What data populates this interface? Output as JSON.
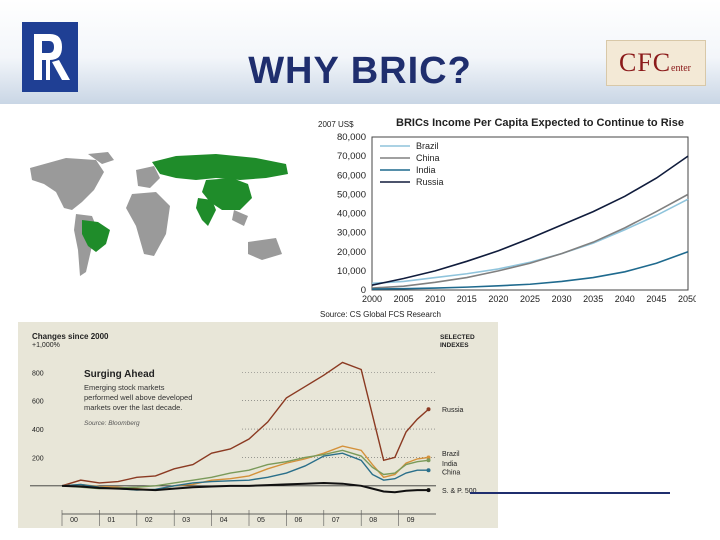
{
  "slide": {
    "title": "WHY BRIC?",
    "cfc_logo": "CFC",
    "cfc_logo_sub": "enter"
  },
  "colors": {
    "title": "#1f2e6e",
    "map_highlight": "#1f8c2a",
    "map_base": "#9a9a9a",
    "brazil": "#8fc4dc",
    "china": "#808080",
    "india": "#1f6a8e",
    "russia": "#101c3c",
    "surge_bg": "#e8e6d8",
    "surge_russia": "#8b3a22",
    "surge_brazil": "#d4913a",
    "surge_india": "#7a9a5a",
    "surge_china": "#2a6f8a",
    "surge_sp500": "#101010"
  },
  "chart_data": [
    {
      "type": "line",
      "title": "BRICs Income Per Capita Expected to Continue to Rise",
      "ylabel": "2007 US$",
      "source": "Source: CS Global FCS Research",
      "x": [
        2000,
        2005,
        2010,
        2015,
        2020,
        2025,
        2030,
        2035,
        2040,
        2045,
        2050
      ],
      "x_tick_labels": [
        "2000",
        "2005",
        "2010",
        "2015",
        "2020",
        "2025",
        "2030",
        "2035",
        "2040",
        "2045",
        "2050"
      ],
      "y_tick_labels": [
        "0",
        "10,000",
        "20,000",
        "30,000",
        "40,000",
        "50,000",
        "60,000",
        "70,000",
        "80,000"
      ],
      "ylim": [
        0,
        80000
      ],
      "legend_position": "top-left",
      "series": [
        {
          "name": "Brazil",
          "values": [
            3500,
            4500,
            6500,
            8500,
            11000,
            14500,
            19000,
            24500,
            31500,
            39000,
            47500
          ]
        },
        {
          "name": "China",
          "values": [
            1000,
            2000,
            4000,
            6500,
            10000,
            14000,
            19000,
            25000,
            32500,
            41000,
            50000
          ]
        },
        {
          "name": "India",
          "values": [
            500,
            700,
            1000,
            1500,
            2200,
            3000,
            4500,
            6500,
            9500,
            14000,
            20000
          ]
        },
        {
          "name": "Russia",
          "values": [
            2500,
            6000,
            10000,
            15000,
            20500,
            27000,
            34000,
            41000,
            49000,
            58500,
            70000
          ]
        }
      ]
    },
    {
      "type": "line",
      "title": "Changes since 2000",
      "subtitle": "Surging Ahead",
      "note": "Emerging stock markets performed well above developed markets over the last decade.",
      "source": "Source: Bloomberg",
      "legend_title": "SELECTED INDEXES",
      "y_tick_labels": [
        "+1,000%",
        "800",
        "600",
        "400",
        "200"
      ],
      "x_tick_labels": [
        "00",
        "01",
        "02",
        "03",
        "04",
        "05",
        "06",
        "07",
        "08",
        "09"
      ],
      "x": [
        2000.0,
        2000.5,
        2001.0,
        2001.5,
        2002.0,
        2002.5,
        2003.0,
        2003.5,
        2004.0,
        2004.5,
        2005.0,
        2005.5,
        2006.0,
        2006.5,
        2007.0,
        2007.5,
        2008.0,
        2008.3,
        2008.6,
        2008.9,
        2009.2,
        2009.5,
        2009.8
      ],
      "ylim": [
        -100,
        1000
      ],
      "series": [
        {
          "name": "Russia",
          "values": [
            0,
            40,
            20,
            30,
            60,
            70,
            120,
            150,
            230,
            260,
            330,
            450,
            620,
            700,
            780,
            870,
            820,
            500,
            180,
            200,
            380,
            470,
            540
          ]
        },
        {
          "name": "Brazil",
          "values": [
            0,
            10,
            -5,
            -10,
            -20,
            -30,
            0,
            10,
            40,
            50,
            70,
            120,
            160,
            190,
            230,
            280,
            250,
            150,
            60,
            80,
            160,
            190,
            200
          ]
        },
        {
          "name": "India",
          "values": [
            0,
            -10,
            -20,
            -15,
            -10,
            0,
            20,
            40,
            60,
            90,
            110,
            150,
            170,
            200,
            220,
            250,
            210,
            130,
            80,
            90,
            150,
            170,
            180
          ]
        },
        {
          "name": "China",
          "values": [
            0,
            10,
            -10,
            -20,
            -30,
            -25,
            0,
            20,
            30,
            35,
            40,
            60,
            90,
            140,
            210,
            230,
            180,
            80,
            40,
            50,
            90,
            110,
            110
          ]
        },
        {
          "name": "S. & P. 500",
          "values": [
            0,
            -5,
            -15,
            -20,
            -25,
            -30,
            -20,
            -10,
            -5,
            0,
            0,
            5,
            10,
            15,
            20,
            15,
            0,
            -20,
            -40,
            -45,
            -35,
            -30,
            -30
          ]
        }
      ]
    }
  ]
}
